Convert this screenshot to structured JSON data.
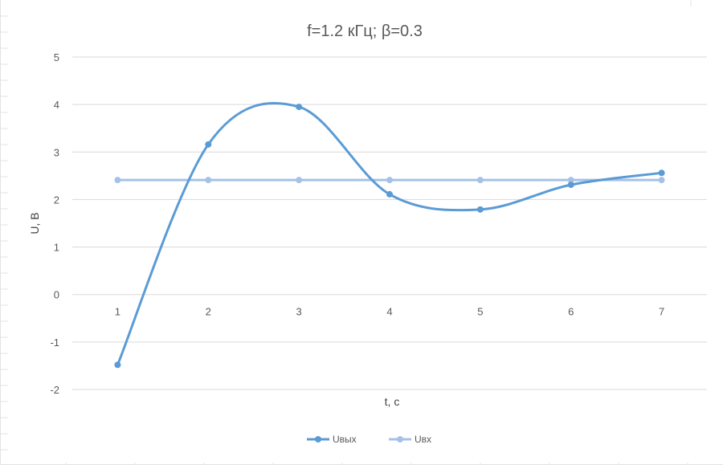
{
  "chart_data": {
    "type": "line",
    "title": "f=1.2 кГц; β=0.3",
    "xlabel": "t, c",
    "ylabel": "U, B",
    "categories": [
      "1",
      "2",
      "3",
      "4",
      "5",
      "6",
      "7"
    ],
    "ylim": [
      -2,
      5
    ],
    "yticks": [
      "-2",
      "-1",
      "0",
      "1",
      "2",
      "3",
      "4",
      "5"
    ],
    "grid": true,
    "smooth": true,
    "legend_position": "bottom",
    "series": [
      {
        "name": "Uвых",
        "values": [
          -1.48,
          3.16,
          3.95,
          2.11,
          1.79,
          2.31,
          2.56
        ],
        "color": "#5b9bd5"
      },
      {
        "name": "Uвх",
        "values": [
          2.41,
          2.41,
          2.41,
          2.41,
          2.41,
          2.41,
          2.41
        ],
        "color": "#a5c2e6"
      }
    ]
  },
  "colors": {
    "gridline": "#d9d9d9",
    "text": "#595959",
    "sheet_grid": "#e3e3e3"
  }
}
